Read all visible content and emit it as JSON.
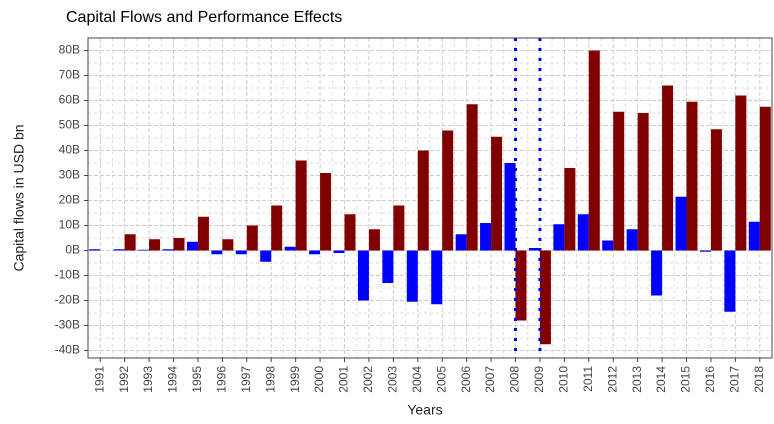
{
  "chart_data": {
    "type": "bar",
    "title": "Capital Flows and Performance Effects",
    "x_label": "Years",
    "y_label": "Capital flows in USD bn",
    "categories": [
      "1991",
      "1992",
      "1993",
      "1994",
      "1995",
      "1996",
      "1997",
      "1998",
      "1999",
      "2000",
      "2001",
      "2002",
      "2003",
      "2004",
      "2005",
      "2006",
      "2007",
      "2008",
      "2009",
      "2010",
      "2011",
      "2012",
      "2013",
      "2014",
      "2015",
      "2016",
      "2017",
      "2018"
    ],
    "series": [
      {
        "color": "#0000ff",
        "values": [
          0.5,
          0.5,
          0.3,
          0.5,
          3.5,
          -1.5,
          -1.5,
          -4.5,
          1.5,
          -1.5,
          -1,
          -20,
          -13,
          -20.5,
          -21.5,
          6.5,
          11,
          35,
          1,
          10.5,
          14.5,
          4,
          8.5,
          -18,
          21.5,
          -0.5,
          -24.5,
          11.5
        ]
      },
      {
        "color": "#800000",
        "values": [
          0,
          6.5,
          4.5,
          5,
          13.5,
          4.5,
          10,
          18,
          36,
          31,
          14.5,
          8.5,
          18,
          40,
          48,
          58.5,
          45.5,
          -28,
          -37.5,
          33,
          80,
          55.5,
          55,
          66,
          59.5,
          48.5,
          62,
          57.5
        ]
      }
    ],
    "ylim": [
      -43,
      85
    ],
    "yticks": [
      {
        "value": -40,
        "label": "-40B"
      },
      {
        "value": -30,
        "label": "-30B"
      },
      {
        "value": -20,
        "label": "-20B"
      },
      {
        "value": -10,
        "label": "-10B"
      },
      {
        "value": 0,
        "label": "0B"
      },
      {
        "value": 10,
        "label": "10B"
      },
      {
        "value": 20,
        "label": "20B"
      },
      {
        "value": 30,
        "label": "30B"
      },
      {
        "value": 40,
        "label": "40B"
      },
      {
        "value": 50,
        "label": "50B"
      },
      {
        "value": 60,
        "label": "60B"
      },
      {
        "value": 70,
        "label": "70B"
      },
      {
        "value": 80,
        "label": "80B"
      }
    ],
    "grid": true,
    "vlines": [
      "2008",
      "2009"
    ],
    "vline_color": "#0000ff"
  }
}
